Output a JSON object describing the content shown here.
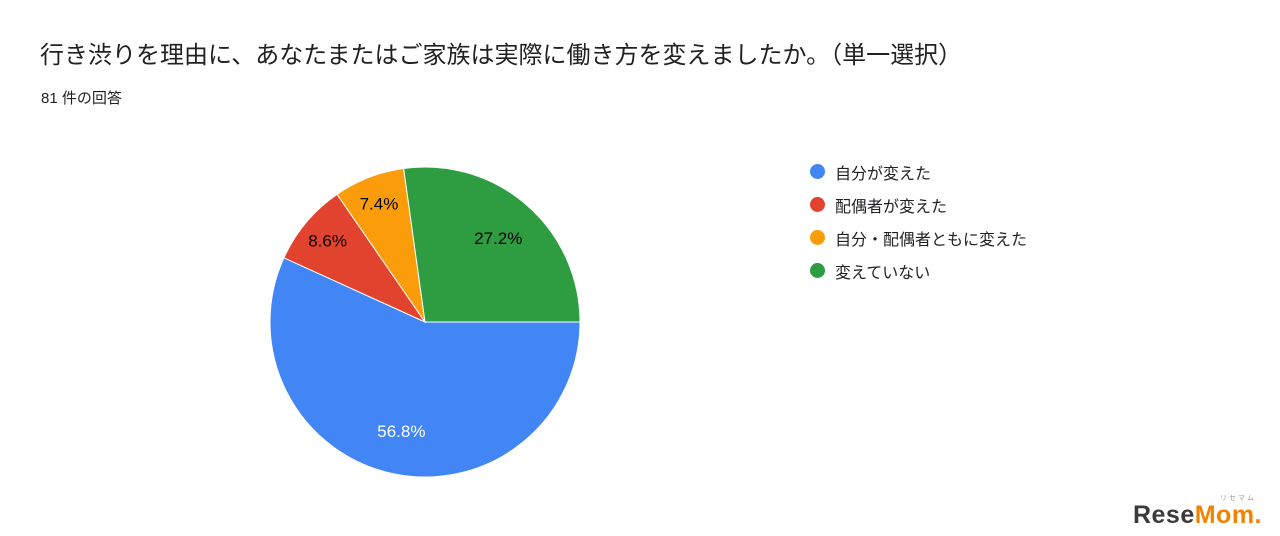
{
  "header": {
    "title": "行き渋りを理由に、あなたまたはご家族は実際に働き方を変えましたか。（単一選択）",
    "response_count": "81 件の回答"
  },
  "chart_data": {
    "type": "pie",
    "title": "行き渋りを理由に、あなたまたはご家族は実際に働き方を変えましたか。（単一選択）",
    "subtitle": "81 件の回答",
    "categories": [
      "自分が変えた",
      "配偶者が変えた",
      "自分・配偶者ともに変えた",
      "変えていない"
    ],
    "values": [
      56.8,
      8.6,
      7.4,
      27.2
    ],
    "labels": [
      "56.8%",
      "8.6%",
      "7.4%",
      "27.2%"
    ],
    "colors": [
      "#4285f4",
      "#e1432e",
      "#fb9d0a",
      "#2e9d42"
    ],
    "label_colors": [
      "#ffffff",
      "#000000",
      "#000000",
      "#000000"
    ],
    "start_angle_deg": 0,
    "direction": "clockwise",
    "legend_position": "right"
  },
  "legend": {
    "items": [
      {
        "label": "自分が変えた",
        "color": "#4285f4"
      },
      {
        "label": "配偶者が変えた",
        "color": "#e1432e"
      },
      {
        "label": "自分・配偶者ともに変えた",
        "color": "#fb9d0a"
      },
      {
        "label": "変えていない",
        "color": "#2e9d42"
      }
    ]
  },
  "logo": {
    "ruby": "リセマム",
    "parts": [
      {
        "text": "Rese",
        "color": "#3b3b3b"
      },
      {
        "text": "Mom",
        "color": "#f08300"
      },
      {
        "text": ".",
        "color": "#f08300"
      }
    ]
  }
}
